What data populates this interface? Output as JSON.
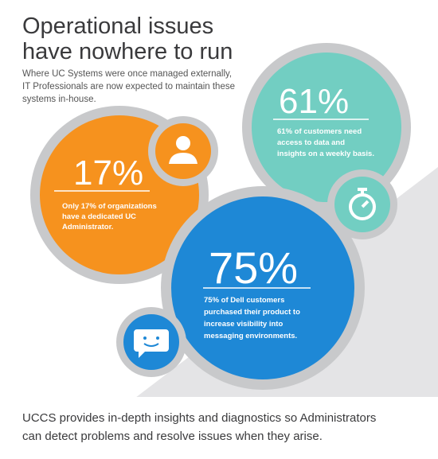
{
  "header": {
    "title": [
      "Operational issues",
      "have nowhere to run"
    ],
    "subtitle": [
      "Where UC Systems were once managed externally,",
      "IT Professionals are now expected to maintain these",
      "systems in-house."
    ]
  },
  "stats": [
    {
      "value": "17%",
      "description": [
        "Only 17% of organizations",
        "have a dedicated UC",
        "Administrator."
      ]
    },
    {
      "value": "61%",
      "description": [
        "61% of customers need",
        "access to data and",
        "insights on a weekly basis."
      ]
    },
    {
      "value": "75%",
      "description": [
        "75% of Dell customers",
        "purchased their product to",
        "increase visibility into",
        "messaging environments."
      ]
    }
  ],
  "footer": [
    "UCCS provides in-depth insights and diagnostics so Administrators",
    "can detect problems and resolve issues when they arise."
  ]
}
